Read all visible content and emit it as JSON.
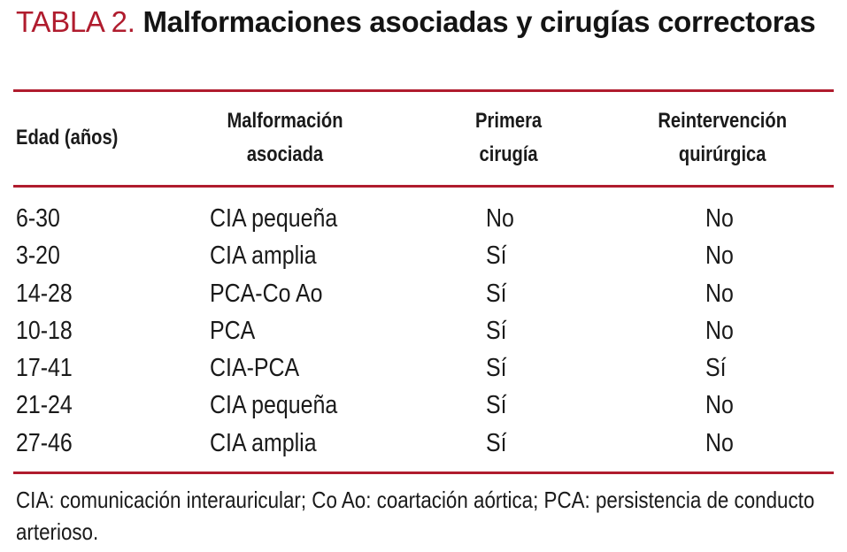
{
  "title": {
    "label": "TABLA 2.",
    "text": "Malformaciones asociadas y cirugías correctoras"
  },
  "table": {
    "headers": [
      "Edad (años)",
      "Malformación asociada",
      "Primera cirugía",
      "Reintervención quirúrgica"
    ],
    "rows": [
      {
        "age": "6-30",
        "malformation": "CIA pequeña",
        "first": "No",
        "reint": "No"
      },
      {
        "age": "3-20",
        "malformation": "CIA amplia",
        "first": "Sí",
        "reint": "No"
      },
      {
        "age": "14-28",
        "malformation": "PCA-Co Ao",
        "first": "Sí",
        "reint": "No"
      },
      {
        "age": "10-18",
        "malformation": "PCA",
        "first": "Sí",
        "reint": "No"
      },
      {
        "age": "17-41",
        "malformation": "CIA-PCA",
        "first": "Sí",
        "reint": "Sí"
      },
      {
        "age": "21-24",
        "malformation": "CIA pequeña",
        "first": "Sí",
        "reint": "No"
      },
      {
        "age": "27-46",
        "malformation": "CIA amplia",
        "first": "Sí",
        "reint": "No"
      }
    ]
  },
  "footnote": "CIA: comunicación interauricular; Co Ao: coartación aórtica; PCA: persistencia de conducto arterioso.",
  "colors": {
    "accent": "#b01c2e",
    "text": "#1a1a1a"
  }
}
